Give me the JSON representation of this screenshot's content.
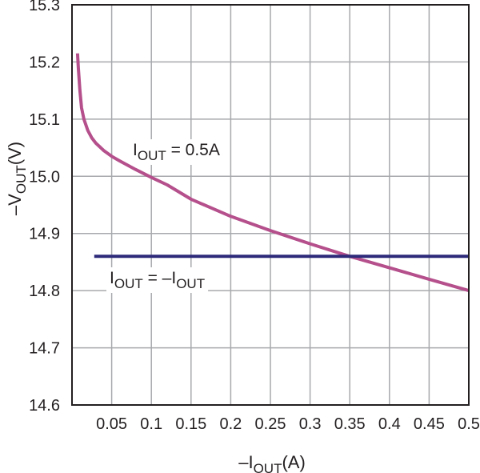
{
  "chart_data": {
    "type": "line",
    "xlabel": {
      "prefix": "–I",
      "sub": "OUT",
      "suffix": "(A)"
    },
    "ylabel": {
      "prefix": "–V",
      "sub": "OUT",
      "suffix": "(V)"
    },
    "xlim": [
      0,
      0.5
    ],
    "ylim": [
      14.6,
      15.3
    ],
    "x_ticks": [
      "0.05",
      "0.1",
      "0.15",
      "0.2",
      "0.25",
      "0.3",
      "0.35",
      "0.4",
      "0.45",
      "0.5"
    ],
    "y_ticks": [
      "14.6",
      "14.7",
      "14.8",
      "14.9",
      "15.0",
      "15.1",
      "15.2",
      "15.3"
    ],
    "x_tick_values": [
      0.05,
      0.1,
      0.15,
      0.2,
      0.25,
      0.3,
      0.35,
      0.4,
      0.45,
      0.5
    ],
    "y_tick_values": [
      14.6,
      14.7,
      14.8,
      14.9,
      15.0,
      15.1,
      15.2,
      15.3
    ],
    "x_grid": [
      0.05,
      0.1,
      0.15,
      0.2,
      0.25,
      0.3,
      0.35,
      0.4,
      0.45
    ],
    "y_grid": [
      14.7,
      14.8,
      14.9,
      15.0,
      15.1,
      15.2
    ],
    "grid": true,
    "colors": {
      "series_a": "#b5508c",
      "series_b": "#2e2a7a",
      "grid": "#a7a9ac",
      "axis": "#231f20"
    },
    "series": [
      {
        "x": [
          0.007,
          0.008,
          0.01,
          0.012,
          0.015,
          0.02,
          0.025,
          0.03,
          0.04,
          0.05,
          0.06,
          0.08,
          0.1,
          0.12,
          0.15,
          0.2,
          0.25,
          0.3,
          0.35,
          0.4,
          0.45,
          0.5
        ],
        "y": [
          15.215,
          15.19,
          15.15,
          15.12,
          15.1,
          15.08,
          15.067,
          15.058,
          15.045,
          15.035,
          15.027,
          15.012,
          14.998,
          14.985,
          14.96,
          14.93,
          14.905,
          14.882,
          14.86,
          14.84,
          14.82,
          14.8
        ]
      },
      {
        "x": [
          0.028,
          0.5
        ],
        "y": [
          14.86,
          14.86
        ]
      }
    ],
    "annotations": [
      {
        "prefix": "I",
        "sub": "OUT",
        "suffix": " = 0.5A"
      },
      {
        "prefix": "I",
        "sub": "OUT",
        "mid": " = –I",
        "sub2": "OUT"
      }
    ]
  }
}
